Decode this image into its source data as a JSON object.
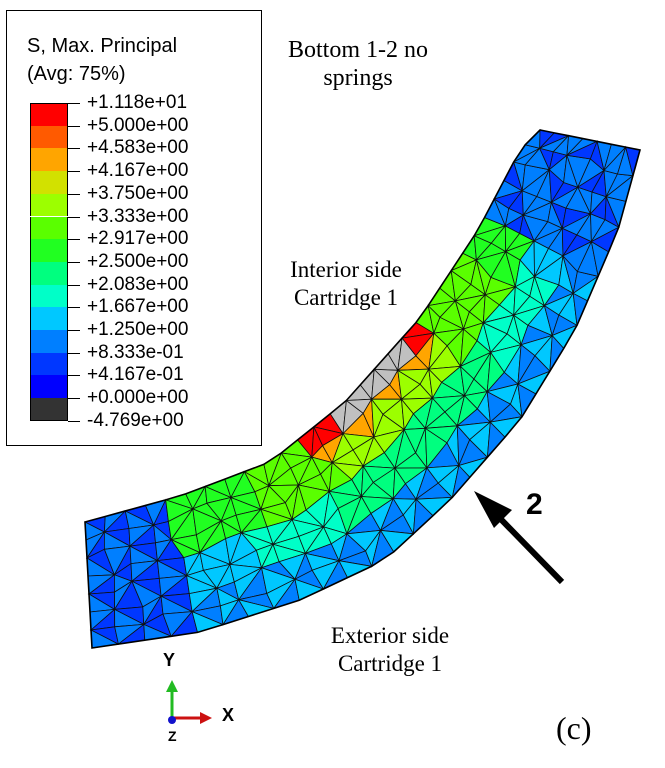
{
  "legend": {
    "title_line1": "S, Max. Principal",
    "title_line2": "(Avg: 75%)",
    "levels": [
      {
        "label": "+1.118e+01",
        "color": "#c0c0c0"
      },
      {
        "label": "+5.000e+00",
        "color": "#ff0000"
      },
      {
        "label": "+4.583e+00",
        "color": "#ff5a00"
      },
      {
        "label": "+4.167e+00",
        "color": "#ffa500"
      },
      {
        "label": "+3.750e+00",
        "color": "#d2e100"
      },
      {
        "label": "+3.333e+00",
        "color": "#9cff00"
      },
      {
        "label": "+2.917e+00",
        "color": "#5aff00"
      },
      {
        "label": "+2.500e+00",
        "color": "#21ff21"
      },
      {
        "label": "+2.083e+00",
        "color": "#00ff7f"
      },
      {
        "label": "+1.667e+00",
        "color": "#00ffc8"
      },
      {
        "label": "+1.250e+00",
        "color": "#00c8ff"
      },
      {
        "label": "+8.333e-01",
        "color": "#007fff"
      },
      {
        "label": "+4.167e-01",
        "color": "#0037ff"
      },
      {
        "label": "+0.000e+00",
        "color": "#0000ff"
      },
      {
        "label": "-4.769e+00",
        "color": "#333333"
      }
    ]
  },
  "annotations": {
    "top_title_line1": "Bottom 1-2 no",
    "top_title_line2": "springs",
    "interior_line1": "Interior side",
    "interior_line2": "Cartridge 1",
    "exterior_line1": "Exterior side",
    "exterior_line2": "Cartridge 1",
    "arrow_label": "2",
    "panel_label": "(c)"
  },
  "triad": {
    "y_label": "Y",
    "x_label": "X",
    "z_label": "Z",
    "y_color": "#22bb22",
    "x_color": "#cc1111",
    "z_color": "#1111cc"
  }
}
